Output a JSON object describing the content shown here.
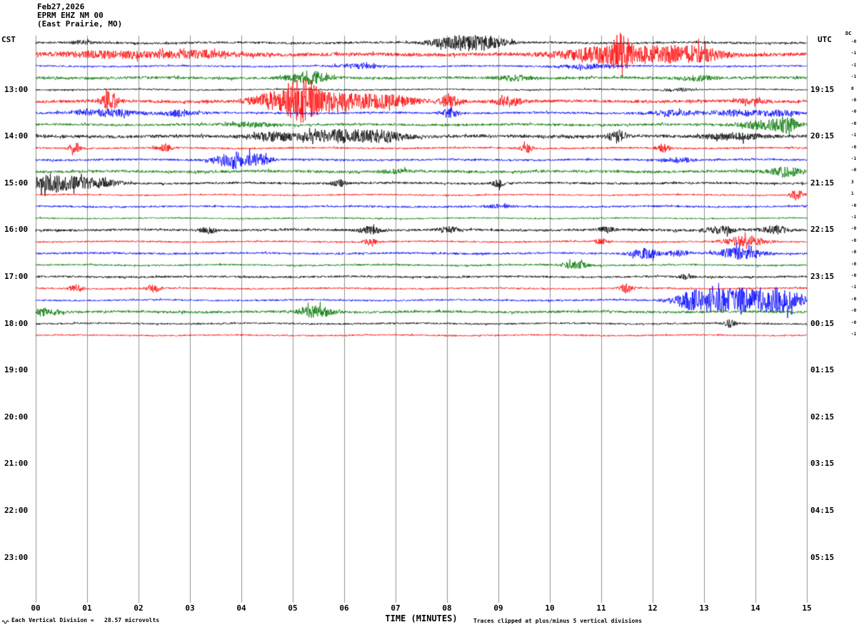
{
  "header": {
    "date": "Feb27,2026",
    "station": "EPRM EHZ NM 00",
    "location": "(East Prairie, MO)"
  },
  "labels": {
    "left_tz": "CST",
    "right_tz": "UTC",
    "dc": "DC",
    "left_hours": [
      "13:00",
      "14:00",
      "15:00",
      "16:00",
      "17:00",
      "18:00",
      "19:00",
      "20:00",
      "21:00",
      "22:00",
      "23:00"
    ],
    "right_hours": [
      "19:15",
      "20:15",
      "21:15",
      "22:15",
      "23:15",
      "00:15",
      "01:15",
      "02:15",
      "03:15",
      "04:15",
      "05:15"
    ],
    "x_ticks": [
      "00",
      "01",
      "02",
      "03",
      "04",
      "05",
      "06",
      "07",
      "08",
      "09",
      "10",
      "11",
      "12",
      "13",
      "14",
      "15"
    ],
    "x_axis": "TIME (MINUTES)",
    "scale_note": "Each Vertical Division =   28.57 microvolts",
    "clip_note": "Traces clipped at plus/minus 5 vertical divisions"
  },
  "dc_offsets": [
    "-0",
    "-1",
    "-1",
    "-1",
    "0",
    "-0",
    "-0",
    "-0",
    "-1",
    "-0",
    "-1",
    "-0",
    "3",
    "1",
    "-0",
    "-1",
    "-0",
    "-0",
    "-0",
    "-0",
    "-0",
    "-1",
    "-0",
    "-0",
    "-0",
    "-1"
  ],
  "chart_data": {
    "type": "line",
    "title": "EPRM EHZ NM 00 (East Prairie, MO) helicorder Feb27,2026",
    "xlabel": "TIME (MINUTES)",
    "x_range_minutes": [
      0,
      15
    ],
    "minutes_per_line": 15,
    "amplitude_units": "microvolts",
    "microvolts_per_division": 28.57,
    "clip_divisions": 5,
    "trace_color_cycle": [
      "#000000",
      "#ff0000",
      "#0000ff",
      "#007700"
    ],
    "grid_color": "#909090",
    "traces": [
      {
        "start_cst": "12:00",
        "color": "#000000",
        "noise": 1.5,
        "events": [
          {
            "t": 8.2,
            "w": 0.5,
            "amp": 9
          },
          {
            "t": 8.8,
            "w": 0.4,
            "amp": 7
          },
          {
            "t": 0.9,
            "w": 0.2,
            "amp": 2
          }
        ]
      },
      {
        "start_cst": "12:15",
        "color": "#ff0000",
        "noise": 2.4,
        "events": [
          {
            "t": 1.5,
            "w": 1.0,
            "amp": 4
          },
          {
            "t": 3.2,
            "w": 0.8,
            "amp": 4
          },
          {
            "t": 11.0,
            "w": 0.8,
            "amp": 10
          },
          {
            "t": 11.4,
            "w": 0.15,
            "amp": 24
          },
          {
            "t": 12.3,
            "w": 0.7,
            "amp": 10
          },
          {
            "t": 13.0,
            "w": 0.4,
            "amp": 6
          }
        ]
      },
      {
        "start_cst": "12:30",
        "color": "#0000ff",
        "noise": 1.2,
        "events": [
          {
            "t": 6.3,
            "w": 0.4,
            "amp": 3
          },
          {
            "t": 10.7,
            "w": 0.5,
            "amp": 3
          }
        ]
      },
      {
        "start_cst": "12:45",
        "color": "#007700",
        "noise": 1.8,
        "events": [
          {
            "t": 5.3,
            "w": 0.35,
            "amp": 9
          },
          {
            "t": 9.3,
            "w": 0.3,
            "amp": 3
          },
          {
            "t": 12.9,
            "w": 0.3,
            "amp": 3
          }
        ]
      },
      {
        "start_cst": "13:00",
        "color": "#000000",
        "noise": 1.0,
        "events": [
          {
            "t": 12.5,
            "w": 0.3,
            "amp": 2
          }
        ]
      },
      {
        "start_cst": "13:15",
        "color": "#ff0000",
        "noise": 2.0,
        "events": [
          {
            "t": 1.45,
            "w": 0.15,
            "amp": 13
          },
          {
            "t": 4.7,
            "w": 0.5,
            "amp": 11
          },
          {
            "t": 5.2,
            "w": 0.25,
            "amp": 27
          },
          {
            "t": 5.8,
            "w": 0.8,
            "amp": 11
          },
          {
            "t": 6.9,
            "w": 0.5,
            "amp": 7
          },
          {
            "t": 8.05,
            "w": 0.2,
            "amp": 9
          },
          {
            "t": 9.2,
            "w": 0.25,
            "amp": 6
          },
          {
            "t": 13.9,
            "w": 0.3,
            "amp": 3
          }
        ]
      },
      {
        "start_cst": "13:30",
        "color": "#0000ff",
        "noise": 1.5,
        "events": [
          {
            "t": 1.4,
            "w": 0.6,
            "amp": 5
          },
          {
            "t": 2.8,
            "w": 0.3,
            "amp": 4
          },
          {
            "t": 8.05,
            "w": 0.15,
            "amp": 6
          },
          {
            "t": 12.4,
            "w": 0.5,
            "amp": 3
          },
          {
            "t": 13.7,
            "w": 0.5,
            "amp": 4
          },
          {
            "t": 14.5,
            "w": 0.3,
            "amp": 4
          }
        ]
      },
      {
        "start_cst": "13:45",
        "color": "#007700",
        "noise": 1.6,
        "events": [
          {
            "t": 4.2,
            "w": 0.4,
            "amp": 3
          },
          {
            "t": 14.2,
            "w": 0.5,
            "amp": 6
          },
          {
            "t": 14.6,
            "w": 0.2,
            "amp": 8
          }
        ]
      },
      {
        "start_cst": "14:00",
        "color": "#000000",
        "noise": 2.2,
        "events": [
          {
            "t": 4.6,
            "w": 0.4,
            "amp": 5
          },
          {
            "t": 5.9,
            "w": 0.8,
            "amp": 8
          },
          {
            "t": 6.8,
            "w": 0.4,
            "amp": 5
          },
          {
            "t": 11.3,
            "w": 0.15,
            "amp": 8
          },
          {
            "t": 13.6,
            "w": 0.5,
            "amp": 4
          }
        ]
      },
      {
        "start_cst": "14:15",
        "color": "#ff0000",
        "noise": 1.2,
        "events": [
          {
            "t": 0.76,
            "w": 0.12,
            "amp": 5
          },
          {
            "t": 2.5,
            "w": 0.15,
            "amp": 5
          },
          {
            "t": 9.55,
            "w": 0.12,
            "amp": 6
          },
          {
            "t": 12.2,
            "w": 0.12,
            "amp": 6
          }
        ]
      },
      {
        "start_cst": "14:30",
        "color": "#0000ff",
        "noise": 1.4,
        "events": [
          {
            "t": 3.9,
            "w": 0.35,
            "amp": 12
          },
          {
            "t": 4.4,
            "w": 0.2,
            "amp": 6
          },
          {
            "t": 12.5,
            "w": 0.3,
            "amp": 3
          }
        ]
      },
      {
        "start_cst": "14:45",
        "color": "#007700",
        "noise": 1.8,
        "events": [
          {
            "t": 14.6,
            "w": 0.3,
            "amp": 7
          },
          {
            "t": 7.0,
            "w": 0.3,
            "amp": 2
          }
        ]
      },
      {
        "start_cst": "15:00",
        "color": "#000000",
        "noise": 1.5,
        "events": [
          {
            "t": 0.35,
            "w": 0.5,
            "amp": 12
          },
          {
            "t": 1.2,
            "w": 0.4,
            "amp": 6
          },
          {
            "t": 5.9,
            "w": 0.15,
            "amp": 4
          },
          {
            "t": 9.0,
            "w": 0.12,
            "amp": 5
          }
        ]
      },
      {
        "start_cst": "15:15",
        "color": "#ff0000",
        "noise": 1.0,
        "events": [
          {
            "t": 14.8,
            "w": 0.12,
            "amp": 7
          }
        ]
      },
      {
        "start_cst": "15:30",
        "color": "#0000ff",
        "noise": 1.3,
        "events": [
          {
            "t": 9.0,
            "w": 0.3,
            "amp": 2
          }
        ]
      },
      {
        "start_cst": "15:45",
        "color": "#007700",
        "noise": 1.0,
        "events": []
      },
      {
        "start_cst": "16:00",
        "color": "#000000",
        "noise": 1.6,
        "events": [
          {
            "t": 3.35,
            "w": 0.15,
            "amp": 4
          },
          {
            "t": 6.5,
            "w": 0.2,
            "amp": 5
          },
          {
            "t": 8.05,
            "w": 0.2,
            "amp": 4
          },
          {
            "t": 11.1,
            "w": 0.15,
            "amp": 4
          },
          {
            "t": 13.35,
            "w": 0.3,
            "amp": 5
          },
          {
            "t": 14.4,
            "w": 0.25,
            "amp": 5
          }
        ]
      },
      {
        "start_cst": "16:15",
        "color": "#ff0000",
        "noise": 1.1,
        "events": [
          {
            "t": 6.5,
            "w": 0.12,
            "amp": 5
          },
          {
            "t": 11.0,
            "w": 0.12,
            "amp": 4
          },
          {
            "t": 13.8,
            "w": 0.4,
            "amp": 7
          }
        ]
      },
      {
        "start_cst": "16:30",
        "color": "#0000ff",
        "noise": 1.4,
        "events": [
          {
            "t": 11.85,
            "w": 0.25,
            "amp": 7
          },
          {
            "t": 12.5,
            "w": 0.2,
            "amp": 4
          },
          {
            "t": 13.7,
            "w": 0.4,
            "amp": 8
          }
        ]
      },
      {
        "start_cst": "16:45",
        "color": "#007700",
        "noise": 1.2,
        "events": [
          {
            "t": 10.5,
            "w": 0.25,
            "amp": 5
          }
        ]
      },
      {
        "start_cst": "17:00",
        "color": "#000000",
        "noise": 1.4,
        "events": [
          {
            "t": 12.65,
            "w": 0.15,
            "amp": 4
          }
        ]
      },
      {
        "start_cst": "17:15",
        "color": "#ff0000",
        "noise": 1.1,
        "events": [
          {
            "t": 0.8,
            "w": 0.12,
            "amp": 6
          },
          {
            "t": 2.3,
            "w": 0.12,
            "amp": 6
          },
          {
            "t": 11.5,
            "w": 0.12,
            "amp": 7
          }
        ]
      },
      {
        "start_cst": "17:30",
        "color": "#0000ff",
        "noise": 1.2,
        "events": [
          {
            "t": 12.8,
            "w": 0.4,
            "amp": 10
          },
          {
            "t": 13.6,
            "w": 0.7,
            "amp": 16
          },
          {
            "t": 14.5,
            "w": 0.5,
            "amp": 13
          }
        ]
      },
      {
        "start_cst": "17:45",
        "color": "#007700",
        "noise": 1.7,
        "events": [
          {
            "t": 0.2,
            "w": 0.25,
            "amp": 5
          },
          {
            "t": 5.45,
            "w": 0.3,
            "amp": 8
          }
        ]
      },
      {
        "start_cst": "18:00",
        "color": "#000000",
        "noise": 1.2,
        "events": [
          {
            "t": 13.5,
            "w": 0.12,
            "amp": 5
          }
        ]
      },
      {
        "start_cst": "18:15",
        "color": "#ff0000",
        "noise": 1.0,
        "events": []
      }
    ]
  }
}
